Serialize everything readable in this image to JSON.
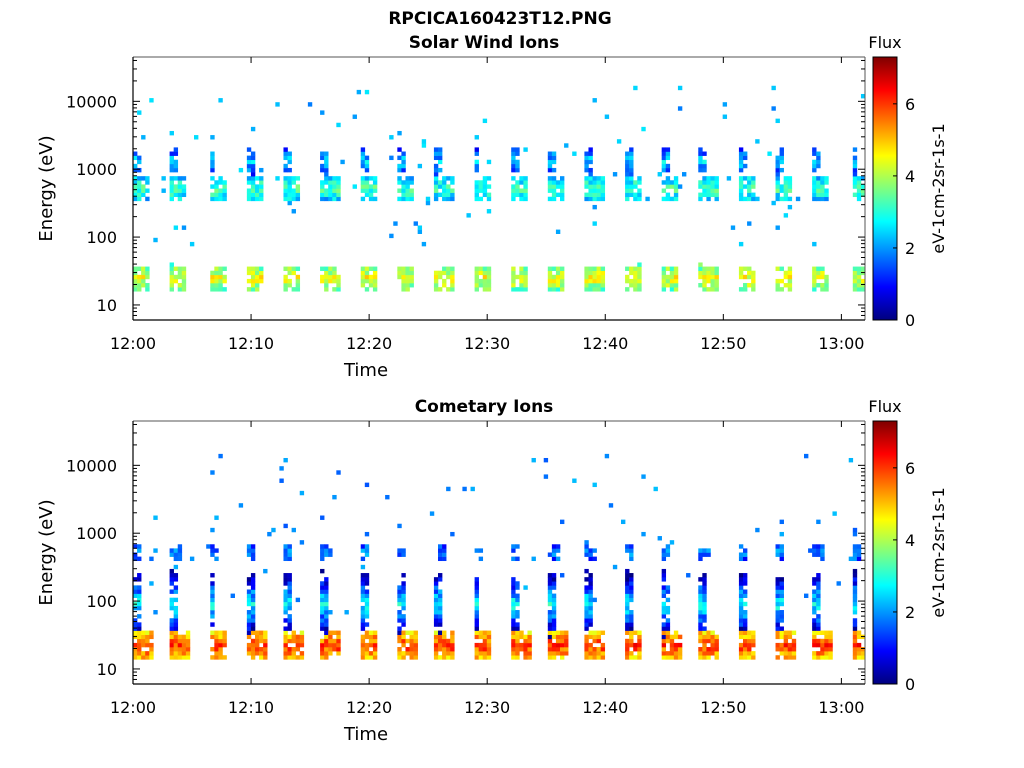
{
  "figure_title": "RPCICA160423T12.PNG",
  "colors": {
    "colormap": [
      "#00007f",
      "#0000ff",
      "#007fff",
      "#00ffff",
      "#7fff7f",
      "#ffff00",
      "#ff7f00",
      "#ff0000",
      "#7f0000"
    ]
  },
  "chart_data": [
    {
      "type": "heatmap",
      "title": "Solar Wind Ions",
      "xlabel": "Time",
      "ylabel": "Energy (eV)",
      "y_scale": "log",
      "x_tick_labels": [
        "12:00",
        "12:10",
        "12:20",
        "12:30",
        "12:40",
        "12:50",
        "13:00"
      ],
      "y_tick_labels": [
        "10",
        "100",
        "1000",
        "10000"
      ],
      "xlim": [
        "12:00",
        "13:02"
      ],
      "ylim": [
        6,
        45000
      ],
      "colorbar": {
        "title": "Flux",
        "label": "eV-1cm-2sr-1s-1",
        "range": [
          0,
          7.3
        ],
        "tick_labels": [
          "0",
          "2",
          "4",
          "6"
        ]
      },
      "features": [
        {
          "energy_eV": 25,
          "flux": 4.5,
          "spread": 0.1,
          "period_min": 3.2,
          "duty": 0.45
        },
        {
          "energy_eV": 520,
          "flux": 3.3,
          "spread": 0.1,
          "period_min": 3.2,
          "duty": 0.45
        },
        {
          "energy_eV": 1300,
          "flux": 2.4,
          "spread": 0.1,
          "period_min": 3.2,
          "duty": 0.2
        }
      ],
      "background_flux": 1.8,
      "grid": false
    },
    {
      "type": "heatmap",
      "title": "Cometary Ions",
      "xlabel": "Time",
      "ylabel": "Energy (eV)",
      "y_scale": "log",
      "x_tick_labels": [
        "12:00",
        "12:10",
        "12:20",
        "12:30",
        "12:40",
        "12:50",
        "13:00"
      ],
      "y_tick_labels": [
        "10",
        "100",
        "1000",
        "10000"
      ],
      "xlim": [
        "12:00",
        "13:02"
      ],
      "ylim": [
        6,
        45000
      ],
      "colorbar": {
        "title": "Flux",
        "label": "eV-1cm-2sr-1s-1",
        "range": [
          0,
          7.3
        ],
        "tick_labels": [
          "0",
          "2",
          "4",
          "6"
        ]
      },
      "features": [
        {
          "energy_eV": 22,
          "flux": 6.0,
          "spread": 0.12,
          "period_min": 3.2,
          "duty": 0.5
        },
        {
          "energy_eV": 520,
          "flux": 2.0,
          "spread": 0.05,
          "period_min": 3.2,
          "duty": 0.25
        },
        {
          "energy_eV": 90,
          "flux": 2.8,
          "spread": 0.3,
          "period_min": 3.2,
          "duty": 0.2
        }
      ],
      "background_flux": 1.5,
      "grid": false
    }
  ]
}
